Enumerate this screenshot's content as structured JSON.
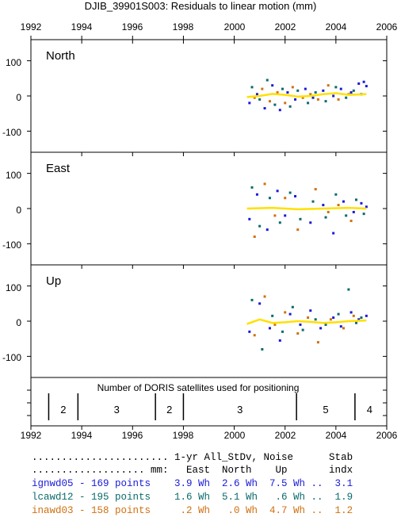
{
  "title": "DJIB_39901S003: Residuals to linear motion (mm)",
  "years": [
    "1992",
    "1994",
    "1996",
    "1998",
    "2000",
    "2002",
    "2004",
    "2006"
  ],
  "panels": [
    {
      "label": "North",
      "ticks": [
        "100",
        "0",
        "-100"
      ]
    },
    {
      "label": "East",
      "ticks": [
        "100",
        "0",
        "-100"
      ]
    },
    {
      "label": "Up",
      "ticks": [
        "100",
        "0",
        "-100"
      ]
    }
  ],
  "satellites": {
    "caption": "Number of DORIS satellites used for positioning",
    "segments": [
      {
        "start": 1992.7,
        "end": 1993.85,
        "count": "2"
      },
      {
        "start": 1993.85,
        "end": 1996.9,
        "count": "3"
      },
      {
        "start": 1996.9,
        "end": 1998.0,
        "count": "2"
      },
      {
        "start": 1998.0,
        "end": 2002.45,
        "count": "3"
      },
      {
        "start": 2002.45,
        "end": 2004.75,
        "count": "5"
      },
      {
        "start": 2004.75,
        "end": 2005.9,
        "count": "4"
      }
    ]
  },
  "legend": {
    "header1": "....................... 1-yr All_StDv, Noise      Stab",
    "header2": "................... mm:   East  North    Up       indx",
    "rows": [
      {
        "text": "ignwd05 - 169 points    3.9 Wh  2.6 Wh  7.5 Wh ..  3.1",
        "color": "#1a1ad8"
      },
      {
        "text": "lcawd12 - 195 points    1.6 Wh  5.1 Wh   .6 Wh ..  1.9",
        "color": "#0a6a6a"
      },
      {
        "text": "inawd03 - 158 points     .2 Wh   .0 Wh  4.7 Wh ..  1.2",
        "color": "#d07010"
      }
    ]
  },
  "chart_data": {
    "type": "scatter",
    "title": "DJIB_39901S003: Residuals to linear motion (mm)",
    "xlabel": "",
    "ylabel": "",
    "xlim": [
      1992,
      2006
    ],
    "ylim": [
      -160,
      160
    ],
    "xticks": [
      1992,
      1994,
      1996,
      1998,
      2000,
      2002,
      2004,
      2006
    ],
    "yticks": [
      -100,
      0,
      100
    ],
    "grid": false,
    "series_colors": {
      "ignwd05": "#1a1ad8",
      "lcawd12": "#0a6a6a",
      "inawd03": "#d07010",
      "extra": "#b01a8a",
      "smooth": "#ffe000"
    },
    "panels": {
      "North": {
        "ignwd05": [
          [
            2000.6,
            -20
          ],
          [
            2000.9,
            5
          ],
          [
            2001.2,
            -35
          ],
          [
            2001.5,
            30
          ],
          [
            2001.8,
            -40
          ],
          [
            2002.1,
            10
          ],
          [
            2002.4,
            -10
          ],
          [
            2002.8,
            20
          ],
          [
            2003.1,
            -5
          ],
          [
            2003.5,
            15
          ],
          [
            2003.9,
            0
          ],
          [
            2004.2,
            20
          ],
          [
            2004.6,
            10
          ],
          [
            2004.9,
            35
          ],
          [
            2005.1,
            40
          ],
          [
            2005.2,
            28
          ]
        ],
        "lcawd12": [
          [
            2000.7,
            25
          ],
          [
            2001.0,
            -10
          ],
          [
            2001.3,
            45
          ],
          [
            2001.6,
            -25
          ],
          [
            2001.9,
            20
          ],
          [
            2002.2,
            -30
          ],
          [
            2002.5,
            15
          ],
          [
            2002.9,
            -20
          ],
          [
            2003.2,
            10
          ],
          [
            2003.6,
            -15
          ],
          [
            2004.0,
            25
          ],
          [
            2004.4,
            -5
          ],
          [
            2004.7,
            15
          ],
          [
            2005.0,
            5
          ]
        ],
        "inawd03": [
          [
            2000.8,
            -5
          ],
          [
            2001.1,
            20
          ],
          [
            2001.4,
            -15
          ],
          [
            2001.7,
            10
          ],
          [
            2002.0,
            -20
          ],
          [
            2002.3,
            25
          ],
          [
            2002.7,
            -5
          ],
          [
            2003.0,
            5
          ],
          [
            2003.3,
            -10
          ],
          [
            2003.7,
            30
          ],
          [
            2004.1,
            -10
          ],
          [
            2004.5,
            5
          ]
        ],
        "smooth": [
          [
            2000.5,
            -3
          ],
          [
            2001.0,
            0
          ],
          [
            2001.5,
            6
          ],
          [
            2002.0,
            3
          ],
          [
            2002.5,
            -2
          ],
          [
            2003.0,
            0
          ],
          [
            2003.5,
            5
          ],
          [
            2004.0,
            8
          ],
          [
            2004.5,
            3
          ],
          [
            2005.2,
            5
          ]
        ]
      },
      "East": {
        "ignwd05": [
          [
            2000.6,
            -30
          ],
          [
            2000.9,
            40
          ],
          [
            2001.3,
            -60
          ],
          [
            2001.7,
            50
          ],
          [
            2002.0,
            -20
          ],
          [
            2002.4,
            35
          ],
          [
            2003.0,
            -40
          ],
          [
            2003.5,
            10
          ],
          [
            2003.9,
            -70
          ],
          [
            2004.3,
            20
          ],
          [
            2004.7,
            -10
          ],
          [
            2005.0,
            15
          ],
          [
            2005.2,
            5
          ]
        ],
        "lcawd12": [
          [
            2000.7,
            60
          ],
          [
            2001.0,
            -50
          ],
          [
            2001.4,
            30
          ],
          [
            2001.8,
            -40
          ],
          [
            2002.2,
            45
          ],
          [
            2002.6,
            -30
          ],
          [
            2003.1,
            20
          ],
          [
            2003.6,
            -25
          ],
          [
            2004.0,
            40
          ],
          [
            2004.4,
            -20
          ],
          [
            2004.8,
            25
          ],
          [
            2005.1,
            -15
          ]
        ],
        "inawd03": [
          [
            2000.8,
            -80
          ],
          [
            2001.2,
            70
          ],
          [
            2001.6,
            -20
          ],
          [
            2002.0,
            30
          ],
          [
            2002.5,
            -60
          ],
          [
            2003.2,
            55
          ],
          [
            2003.7,
            -10
          ],
          [
            2004.1,
            10
          ],
          [
            2004.6,
            -35
          ]
        ],
        "smooth": [
          [
            2000.5,
            0
          ],
          [
            2001.5,
            2
          ],
          [
            2002.5,
            -2
          ],
          [
            2003.5,
            0
          ],
          [
            2004.5,
            2
          ],
          [
            2005.2,
            0
          ]
        ]
      },
      "Up": {
        "ignwd05": [
          [
            2000.6,
            -30
          ],
          [
            2001.0,
            50
          ],
          [
            2001.4,
            -20
          ],
          [
            2001.8,
            -55
          ],
          [
            2002.2,
            20
          ],
          [
            2002.6,
            -10
          ],
          [
            2003.0,
            30
          ],
          [
            2003.4,
            -20
          ],
          [
            2003.9,
            10
          ],
          [
            2004.2,
            -15
          ],
          [
            2004.6,
            25
          ],
          [
            2004.9,
            5
          ],
          [
            2005.2,
            15
          ]
        ],
        "lcawd12": [
          [
            2000.7,
            60
          ],
          [
            2001.1,
            -80
          ],
          [
            2001.5,
            15
          ],
          [
            2001.9,
            -30
          ],
          [
            2002.3,
            40
          ],
          [
            2002.7,
            -25
          ],
          [
            2003.2,
            5
          ],
          [
            2003.6,
            -10
          ],
          [
            2004.1,
            20
          ],
          [
            2004.5,
            90
          ],
          [
            2004.8,
            -5
          ],
          [
            2005.0,
            10
          ]
        ],
        "inawd03": [
          [
            2000.8,
            -40
          ],
          [
            2001.2,
            70
          ],
          [
            2001.6,
            -10
          ],
          [
            2002.0,
            25
          ],
          [
            2002.5,
            -35
          ],
          [
            2002.9,
            10
          ],
          [
            2003.3,
            -60
          ],
          [
            2003.8,
            5
          ],
          [
            2004.3,
            -20
          ],
          [
            2004.7,
            15
          ]
        ],
        "smooth": [
          [
            2000.5,
            -8
          ],
          [
            2001.0,
            5
          ],
          [
            2001.5,
            -5
          ],
          [
            2002.0,
            -3
          ],
          [
            2002.5,
            0
          ],
          [
            2003.0,
            -2
          ],
          [
            2003.5,
            -5
          ],
          [
            2004.0,
            -3
          ],
          [
            2004.5,
            0
          ],
          [
            2005.2,
            2
          ]
        ]
      }
    }
  }
}
